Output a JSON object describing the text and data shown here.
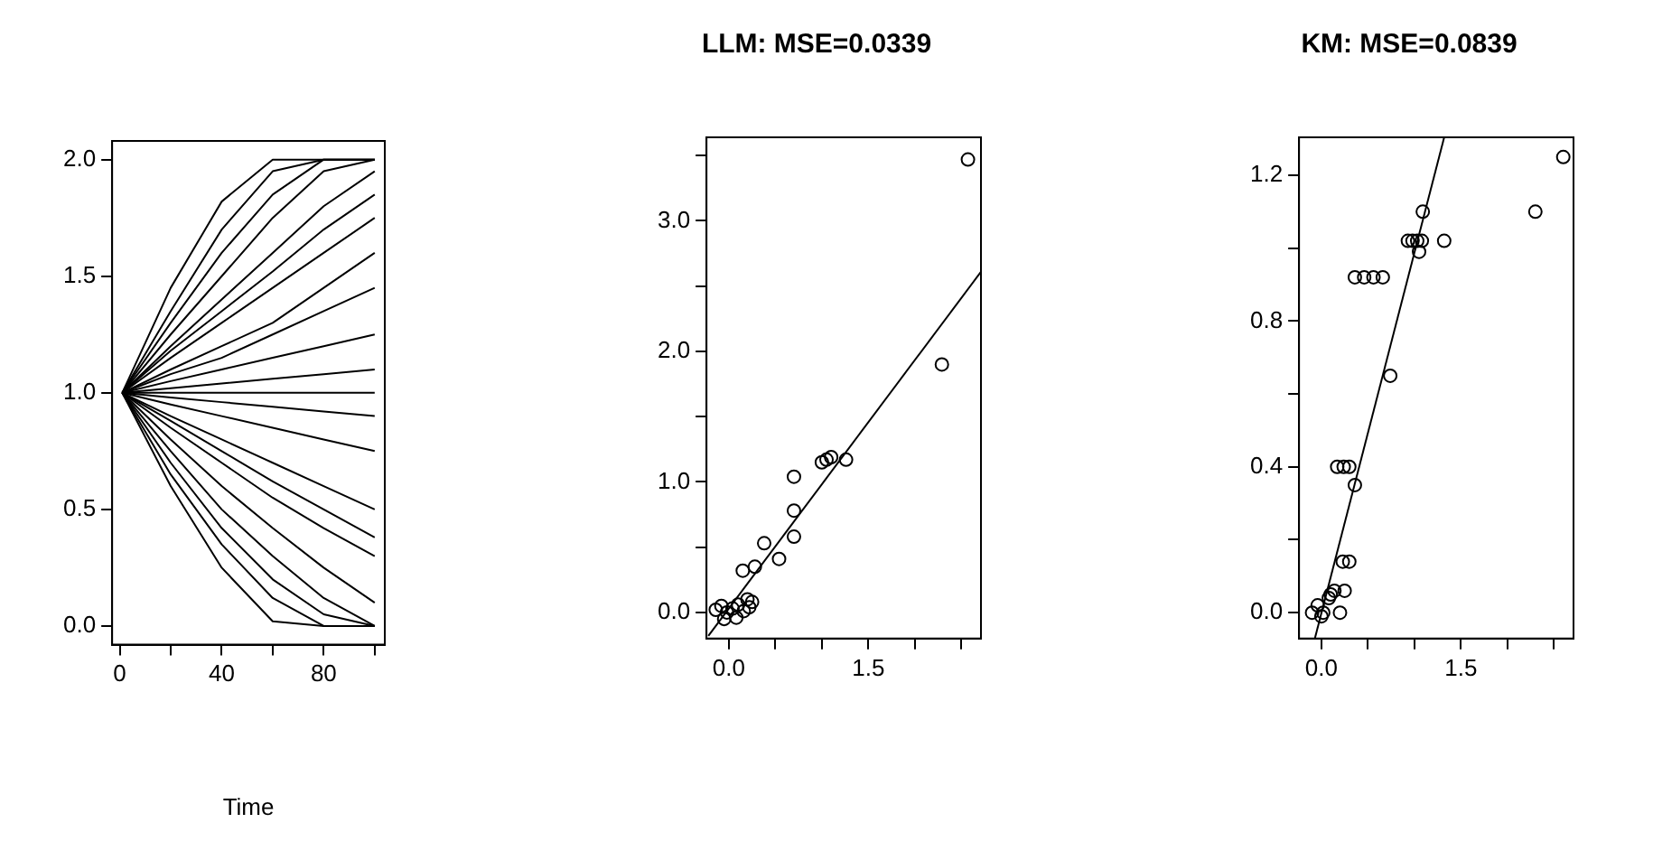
{
  "chart_data": [
    {
      "type": "line",
      "xlabel": "Time",
      "xlim": [
        -2.96,
        103.96
      ],
      "xticks": [
        0,
        {
          "value": 20,
          "label": null
        },
        40,
        {
          "value": 60,
          "label": null
        },
        80,
        {
          "value": 100,
          "label": null
        }
      ],
      "ylim": [
        -0.08,
        2.08
      ],
      "yticks": [
        {
          "value": 0,
          "label": "0.0"
        },
        {
          "value": 0.5,
          "label": "0.5"
        },
        {
          "value": 1,
          "label": "1.0"
        },
        {
          "value": 1.5,
          "label": "1.5"
        },
        {
          "value": 2,
          "label": "2.0"
        }
      ],
      "x": [
        1,
        20,
        40,
        60,
        80,
        100
      ],
      "series": [
        {
          "color": "#000000",
          "values": [
            1,
            1.45,
            1.82,
            2,
            2,
            2
          ]
        },
        {
          "color": "#000000",
          "values": [
            1,
            1.35,
            1.7,
            1.95,
            2,
            2
          ]
        },
        {
          "color": "#000000",
          "values": [
            1,
            1.3,
            1.6,
            1.85,
            2,
            2
          ]
        },
        {
          "color": "#000000",
          "values": [
            1,
            1.25,
            1.5,
            1.75,
            1.95,
            2
          ]
        },
        {
          "color": "#000000",
          "values": [
            1,
            1.2,
            1.4,
            1.6,
            1.8,
            1.95
          ]
        },
        {
          "color": "#000000",
          "values": [
            1,
            1.18,
            1.35,
            1.52,
            1.7,
            1.85
          ]
        },
        {
          "color": "#000000",
          "values": [
            1,
            1.15,
            1.3,
            1.45,
            1.6,
            1.75
          ]
        },
        {
          "color": "#000000",
          "values": [
            1,
            1.1,
            1.2,
            1.3,
            1.45,
            1.6
          ]
        },
        {
          "color": "#000000",
          "values": [
            1,
            1.08,
            1.15,
            1.25,
            1.35,
            1.45
          ]
        },
        {
          "color": "#000000",
          "values": [
            1,
            1.05,
            1.1,
            1.15,
            1.2,
            1.25
          ]
        },
        {
          "color": "#000000",
          "values": [
            1,
            1.02,
            1.04,
            1.06,
            1.08,
            1.1
          ]
        },
        {
          "color": "#000000",
          "values": [
            1,
            1,
            1,
            1,
            1,
            1
          ]
        },
        {
          "color": "#000000",
          "values": [
            1,
            0.98,
            0.96,
            0.94,
            0.92,
            0.9
          ]
        },
        {
          "color": "#000000",
          "values": [
            1,
            0.95,
            0.9,
            0.85,
            0.8,
            0.75
          ]
        },
        {
          "color": "#000000",
          "values": [
            1,
            0.9,
            0.8,
            0.7,
            0.6,
            0.5
          ]
        },
        {
          "color": "#000000",
          "values": [
            1,
            0.88,
            0.75,
            0.62,
            0.5,
            0.38
          ]
        },
        {
          "color": "#000000",
          "values": [
            1,
            0.85,
            0.7,
            0.55,
            0.42,
            0.3
          ]
        },
        {
          "color": "#000000",
          "values": [
            1,
            0.8,
            0.6,
            0.42,
            0.25,
            0.1
          ]
        },
        {
          "color": "#000000",
          "values": [
            1,
            0.75,
            0.5,
            0.3,
            0.12,
            0
          ]
        },
        {
          "color": "#000000",
          "values": [
            1,
            0.7,
            0.42,
            0.2,
            0.05,
            0
          ]
        },
        {
          "color": "#000000",
          "values": [
            1,
            0.65,
            0.35,
            0.12,
            0,
            0
          ]
        },
        {
          "color": "#000000",
          "values": [
            1,
            0.6,
            0.25,
            0.02,
            0,
            0
          ]
        }
      ]
    },
    {
      "type": "scatter",
      "title": "LLM: MSE=0.0339",
      "xlim": [
        -0.24,
        2.71
      ],
      "xticks": [
        {
          "value": 0,
          "label": "0.0"
        },
        {
          "value": 0.5,
          "label": null
        },
        {
          "value": 1,
          "label": null
        },
        {
          "value": 1.5,
          "label": "1.5"
        },
        {
          "value": 2,
          "label": null
        },
        {
          "value": 2.5,
          "label": null
        }
      ],
      "ylim": [
        -0.2,
        3.64
      ],
      "yticks": [
        {
          "value": 0,
          "label": "0.0"
        },
        {
          "value": 0.5,
          "label": null
        },
        {
          "value": 1,
          "label": "1.0"
        },
        {
          "value": 1.5,
          "label": null
        },
        {
          "value": 2,
          "label": "2.0"
        },
        {
          "value": 2.5,
          "label": null
        },
        {
          "value": 3,
          "label": "3.0"
        },
        {
          "value": 3.5,
          "label": null
        }
      ],
      "series": [
        {
          "type": "scatter",
          "marker": "circle",
          "color": "#000000",
          "x": [
            2.57,
            2.29,
            1.0,
            1.05,
            1.1,
            1.26,
            0.7,
            0.7,
            0.7,
            0.54,
            0.38,
            0.28,
            0.15,
            0.2,
            -0.14,
            -0.08,
            -0.02,
            0.04,
            0.1,
            0.16,
            0.22,
            0.25,
            -0.05,
            0.08
          ],
          "values": [
            3.47,
            1.9,
            1.15,
            1.17,
            1.19,
            1.17,
            1.04,
            0.78,
            0.58,
            0.41,
            0.53,
            0.35,
            0.32,
            0.1,
            0.02,
            0.05,
            0.0,
            0.03,
            0.06,
            0.01,
            0.04,
            0.08,
            -0.05,
            -0.04
          ]
        },
        {
          "type": "line",
          "marker": "none",
          "color": "#000000",
          "x": [
            -0.22,
            2.71
          ],
          "values": [
            -0.18,
            2.61
          ]
        }
      ]
    },
    {
      "type": "scatter",
      "title": "KM: MSE=0.0839",
      "xlim": [
        -0.24,
        2.71
      ],
      "xticks": [
        {
          "value": 0,
          "label": "0.0"
        },
        {
          "value": 0.5,
          "label": null
        },
        {
          "value": 1,
          "label": null
        },
        {
          "value": 1.5,
          "label": "1.5"
        },
        {
          "value": 2,
          "label": null
        },
        {
          "value": 2.5,
          "label": null
        }
      ],
      "ylim": [
        -0.071,
        1.304
      ],
      "yticks": [
        {
          "value": 0,
          "label": "0.0"
        },
        {
          "value": 0.2,
          "label": null
        },
        {
          "value": 0.4,
          "label": "0.4"
        },
        {
          "value": 0.6,
          "label": null
        },
        {
          "value": 0.8,
          "label": "0.8"
        },
        {
          "value": 1,
          "label": null
        },
        {
          "value": 1.2,
          "label": "1.2"
        }
      ],
      "series": [
        {
          "type": "scatter",
          "marker": "circle",
          "color": "#000000",
          "x": [
            2.6,
            2.3,
            1.09,
            0.93,
            0.98,
            1.03,
            1.08,
            1.32,
            1.05,
            0.36,
            0.46,
            0.56,
            0.66,
            0.74,
            0.17,
            0.24,
            0.3,
            0.36,
            0.23,
            0.3,
            -0.1,
            -0.04,
            0.02,
            0.08,
            0.14,
            0.2,
            0.25,
            0.0,
            0.1
          ],
          "values": [
            1.25,
            1.1,
            1.1,
            1.02,
            1.02,
            1.02,
            1.02,
            1.02,
            0.99,
            0.92,
            0.92,
            0.92,
            0.92,
            0.65,
            0.4,
            0.4,
            0.4,
            0.35,
            0.14,
            0.14,
            0.0,
            0.02,
            0.0,
            0.04,
            0.06,
            0.0,
            0.06,
            -0.01,
            0.05
          ]
        },
        {
          "type": "line",
          "marker": "none",
          "color": "#000000",
          "x": [
            -0.07,
            1.32
          ],
          "values": [
            -0.071,
            1.304
          ]
        }
      ]
    }
  ]
}
